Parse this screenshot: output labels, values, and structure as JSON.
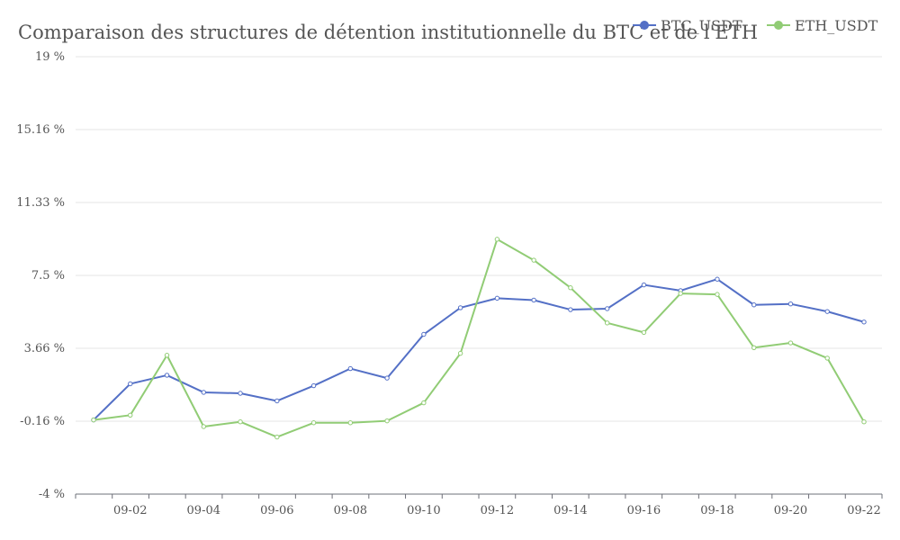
{
  "chart_data": {
    "type": "line",
    "title": "Comparaison des structures de détention institutionnelle du BTC et de l'ETH",
    "xlabel": "",
    "ylabel": "",
    "y_tick_labels": [
      "-4 %",
      "-0.16 %",
      "3.66 %",
      "7.5 %",
      "11.33 %",
      "15.16 %",
      "19 %"
    ],
    "ylim": [
      -4,
      19
    ],
    "x_tick_labels": [
      "09-02",
      "09-04",
      "09-06",
      "09-08",
      "09-10",
      "09-12",
      "09-14",
      "09-16",
      "09-18",
      "09-20",
      "09-22"
    ],
    "x": [
      "09-01",
      "09-02",
      "09-03",
      "09-04",
      "09-05",
      "09-06",
      "09-07",
      "09-08",
      "09-09",
      "09-10",
      "09-11",
      "09-12",
      "09-13",
      "09-14",
      "09-15",
      "09-16",
      "09-17",
      "09-18",
      "09-19",
      "09-20",
      "09-21",
      "09-22"
    ],
    "grid": true,
    "legend_position": "top-right",
    "series": [
      {
        "name": "BTC_USDT",
        "color": "#5470c6",
        "values": [
          -0.1,
          1.8,
          2.25,
          1.35,
          1.3,
          0.9,
          1.7,
          2.6,
          2.1,
          4.4,
          5.8,
          6.3,
          6.2,
          5.7,
          5.75,
          7.0,
          6.7,
          7.3,
          5.95,
          6.0,
          5.6,
          5.05
        ]
      },
      {
        "name": "ETH_USDT",
        "color": "#91cc75",
        "values": [
          -0.1,
          0.15,
          3.3,
          -0.45,
          -0.2,
          -1.0,
          -0.25,
          -0.25,
          -0.15,
          0.8,
          3.4,
          9.4,
          8.3,
          6.85,
          5.0,
          4.5,
          6.55,
          6.5,
          3.7,
          3.95,
          3.15,
          -0.2
        ]
      }
    ]
  }
}
